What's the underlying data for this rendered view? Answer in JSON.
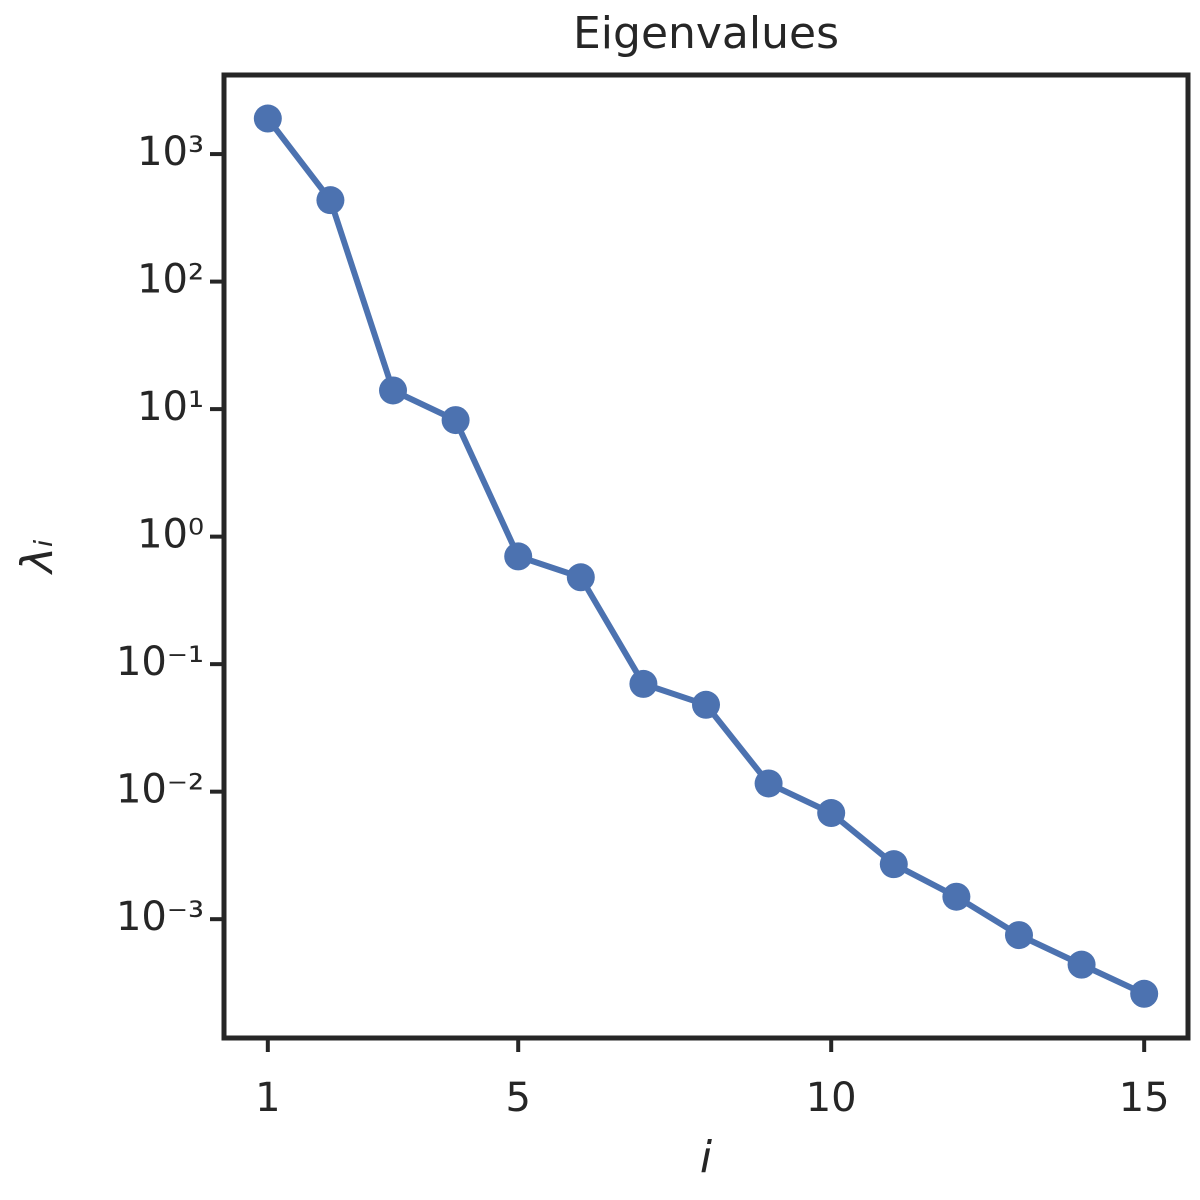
{
  "chart_data": {
    "type": "line",
    "title": "Eigenvalues",
    "xlabel": "i",
    "ylabel": "λᵢ",
    "x": [
      1,
      2,
      3,
      4,
      5,
      6,
      7,
      8,
      9,
      10,
      11,
      12,
      13,
      14,
      15
    ],
    "series": [
      {
        "color": "#4c72b0",
        "values": [
          1900,
          435,
          14,
          8.2,
          0.7,
          0.48,
          0.07,
          0.048,
          0.0116,
          0.0068,
          0.0027,
          0.0015,
          0.00075,
          0.00044,
          0.00026
        ]
      }
    ],
    "xlim": [
      0.3,
      15.7
    ],
    "xticks": [
      1,
      5,
      10,
      15
    ],
    "ylim": [
      0.000117,
      4170
    ],
    "yscale": "log",
    "yticks": [
      {
        "value": 0.001,
        "label": "10⁻³"
      },
      {
        "value": 0.01,
        "label": "10⁻²"
      },
      {
        "value": 0.1,
        "label": "10⁻¹"
      },
      {
        "value": 1,
        "label": "10⁰"
      },
      {
        "value": 10,
        "label": "10¹"
      },
      {
        "value": 100,
        "label": "10²"
      },
      {
        "value": 1000,
        "label": "10³"
      }
    ]
  }
}
